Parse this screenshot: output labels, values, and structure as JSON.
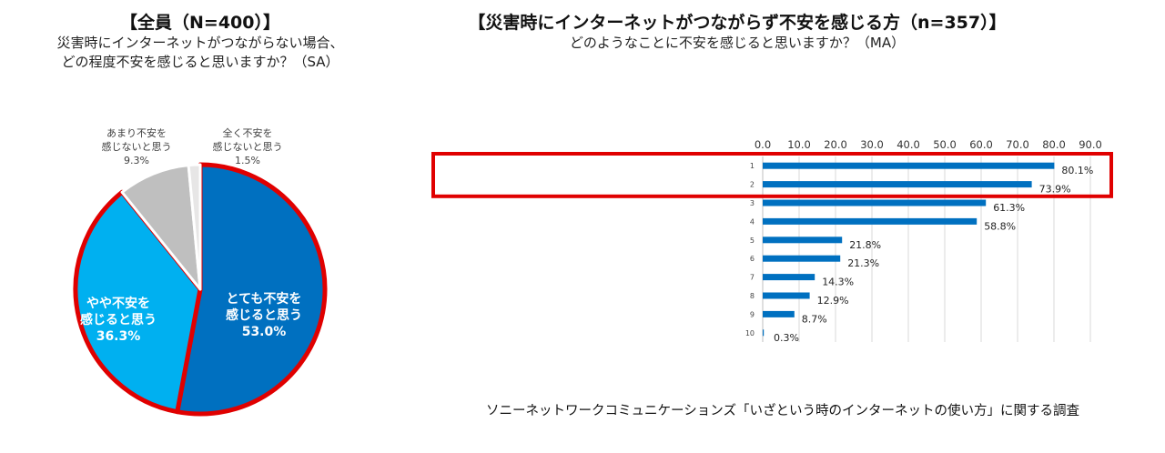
{
  "pie_chart": {
    "title": "【全員（N=400）】",
    "subtitle_lines": [
      "災害時にインターネットがつながらない場合、",
      "どの程度不安を感じると思いますか？（SA）"
    ],
    "chart_data": {
      "type": "pie",
      "slices": [
        {
          "label": "とても不安を感じると思う",
          "label_lines": [
            "とても不安を",
            "感じると思う"
          ],
          "value_label": "53.0%",
          "value": 53.0,
          "color": "#0070C0",
          "label_color": "#ffffff"
        },
        {
          "label": "やや不安を感じると思う",
          "label_lines": [
            "やや不安を",
            "感じると思う"
          ],
          "value_label": "36.3%",
          "value": 36.3,
          "color": "#00B0F0",
          "label_color": "#ffffff"
        },
        {
          "label": "あまり不安を感じないと思う",
          "label_lines": [
            "あまり不安を",
            "感じないと思う"
          ],
          "value_label": "9.3%",
          "value": 9.3,
          "color": "#BFBFBF",
          "label_color": "#404040"
        },
        {
          "label": "全く不安を感じないと思う",
          "label_lines": [
            "全く不安を",
            "感じないと思う"
          ],
          "value_label": "1.5%",
          "value": 1.5,
          "color": "#E7E6E6",
          "label_color": "#404040"
        }
      ],
      "highlight_color": "#E00000"
    }
  },
  "bar_chart": {
    "title": "【災害時にインターネットがつながらず不安を感じる方（n=357）】",
    "subtitle": "どのようなことに不安を感じると思いますか？（MA）",
    "chart_data": {
      "type": "bar",
      "orientation": "horizontal",
      "categories": [
        "1",
        "2",
        "3",
        "4",
        "5",
        "6",
        "7",
        "8",
        "9",
        "10"
      ],
      "values": [
        80.1,
        73.9,
        61.3,
        58.8,
        21.8,
        21.3,
        14.3,
        12.9,
        8.7,
        0.3
      ],
      "value_labels": [
        "80.1%",
        "73.9%",
        "61.3%",
        "58.8%",
        "21.8%",
        "21.3%",
        "14.3%",
        "12.9%",
        "8.7%",
        "0.3%"
      ],
      "xlim": [
        0,
        90
      ],
      "xticks": [
        "0.0",
        "10.0",
        "20.0",
        "30.0",
        "40.0",
        "50.0",
        "60.0",
        "70.0",
        "80.0",
        "90.0"
      ],
      "grid": true,
      "bar_color": "#0070C0",
      "highlight_rows": [
        1,
        2
      ],
      "highlight_color": "#E00000"
    }
  },
  "source": "ソニーネットワークコミュニケーションズ「いざという時のインターネットの使い方」に関する調査"
}
